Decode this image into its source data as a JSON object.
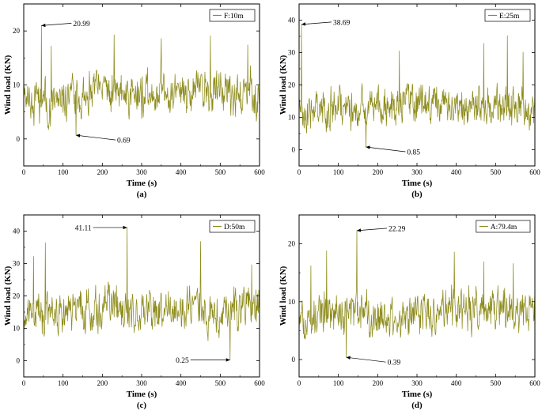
{
  "series_color": "#8e8c1c",
  "chart_data": [
    {
      "type": "line",
      "panel": "(a)",
      "legend": "F:10m",
      "legend_position": "top-right",
      "xlabel": "Time (s)",
      "ylabel": "Wind load (KN)",
      "xlim": [
        0,
        600
      ],
      "ylim": [
        -5,
        25
      ],
      "xticks": [
        0,
        100,
        200,
        300,
        400,
        500,
        600
      ],
      "yticks": [
        0,
        10,
        20
      ],
      "duration_s": 600,
      "samples": 600,
      "mean": 8.5,
      "spread": 3.2,
      "min": 0.69,
      "max": 20.99,
      "min_time": 133,
      "max_time": 45,
      "seed": 11,
      "extra_peaks": [
        [
          230,
          19.3
        ],
        [
          350,
          18.6
        ],
        [
          475,
          19.1
        ],
        [
          70,
          17.2
        ],
        [
          570,
          17.4
        ]
      ],
      "annotations": [
        {
          "text": "20.99",
          "time": 45,
          "value": 20.99,
          "side": "right"
        },
        {
          "text": "0.69",
          "time": 133,
          "value": 0.69,
          "side": "right"
        }
      ]
    },
    {
      "type": "line",
      "panel": "(b)",
      "legend": "E:25m",
      "legend_position": "top-right",
      "xlabel": "Time (s)",
      "ylabel": "Wind load (KN)",
      "xlim": [
        0,
        600
      ],
      "ylim": [
        -5,
        45
      ],
      "xticks": [
        0,
        100,
        200,
        300,
        400,
        500,
        600
      ],
      "yticks": [
        0,
        10,
        20,
        30,
        40
      ],
      "duration_s": 600,
      "samples": 600,
      "mean": 13,
      "spread": 4.8,
      "min": 0.85,
      "max": 38.69,
      "min_time": 170,
      "max_time": 6,
      "seed": 23,
      "extra_peaks": [
        [
          255,
          30.5
        ],
        [
          470,
          32.8
        ],
        [
          530,
          35.2
        ],
        [
          570,
          30.1
        ]
      ],
      "annotations": [
        {
          "text": "38.69",
          "time": 6,
          "value": 38.69,
          "side": "right"
        },
        {
          "text": "0.85",
          "time": 170,
          "value": 0.85,
          "side": "right"
        }
      ]
    },
    {
      "type": "line",
      "panel": "(c)",
      "legend": "D:50m",
      "legend_position": "top-right",
      "xlabel": "Time (s)",
      "ylabel": "Wind load (KN)",
      "xlim": [
        0,
        600
      ],
      "ylim": [
        -5,
        45
      ],
      "xticks": [
        0,
        100,
        200,
        300,
        400,
        500,
        600
      ],
      "yticks": [
        0,
        10,
        20,
        30,
        40
      ],
      "duration_s": 600,
      "samples": 600,
      "mean": 15,
      "spread": 5.2,
      "min": 0.25,
      "max": 41.11,
      "min_time": 525,
      "max_time": 263,
      "seed": 37,
      "extra_peaks": [
        [
          25,
          32.2
        ],
        [
          55,
          36.4
        ],
        [
          450,
          36.8
        ],
        [
          580,
          29.6
        ]
      ],
      "annotations": [
        {
          "text": "41.11",
          "time": 263,
          "value": 41.11,
          "side": "left"
        },
        {
          "text": "0.25",
          "time": 525,
          "value": 0.25,
          "side": "left"
        }
      ]
    },
    {
      "type": "line",
      "panel": "(d)",
      "legend": "A:79.4m",
      "legend_position": "top-right",
      "xlabel": "Time (s)",
      "ylabel": "Wind load (KN)",
      "xlim": [
        0,
        600
      ],
      "ylim": [
        -3,
        25
      ],
      "xticks": [
        0,
        100,
        200,
        300,
        400,
        500,
        600
      ],
      "yticks": [
        0,
        10,
        20
      ],
      "duration_s": 600,
      "samples": 600,
      "mean": 8,
      "spread": 2.9,
      "min": 0.39,
      "max": 22.29,
      "min_time": 120,
      "max_time": 147,
      "seed": 53,
      "extra_peaks": [
        [
          70,
          18.8
        ],
        [
          395,
          18.6
        ],
        [
          470,
          16.9
        ],
        [
          545,
          16.6
        ],
        [
          30,
          16.2
        ]
      ],
      "annotations": [
        {
          "text": "22.29",
          "time": 147,
          "value": 22.29,
          "side": "right"
        },
        {
          "text": "0.39",
          "time": 120,
          "value": 0.39,
          "side": "right"
        }
      ]
    }
  ]
}
